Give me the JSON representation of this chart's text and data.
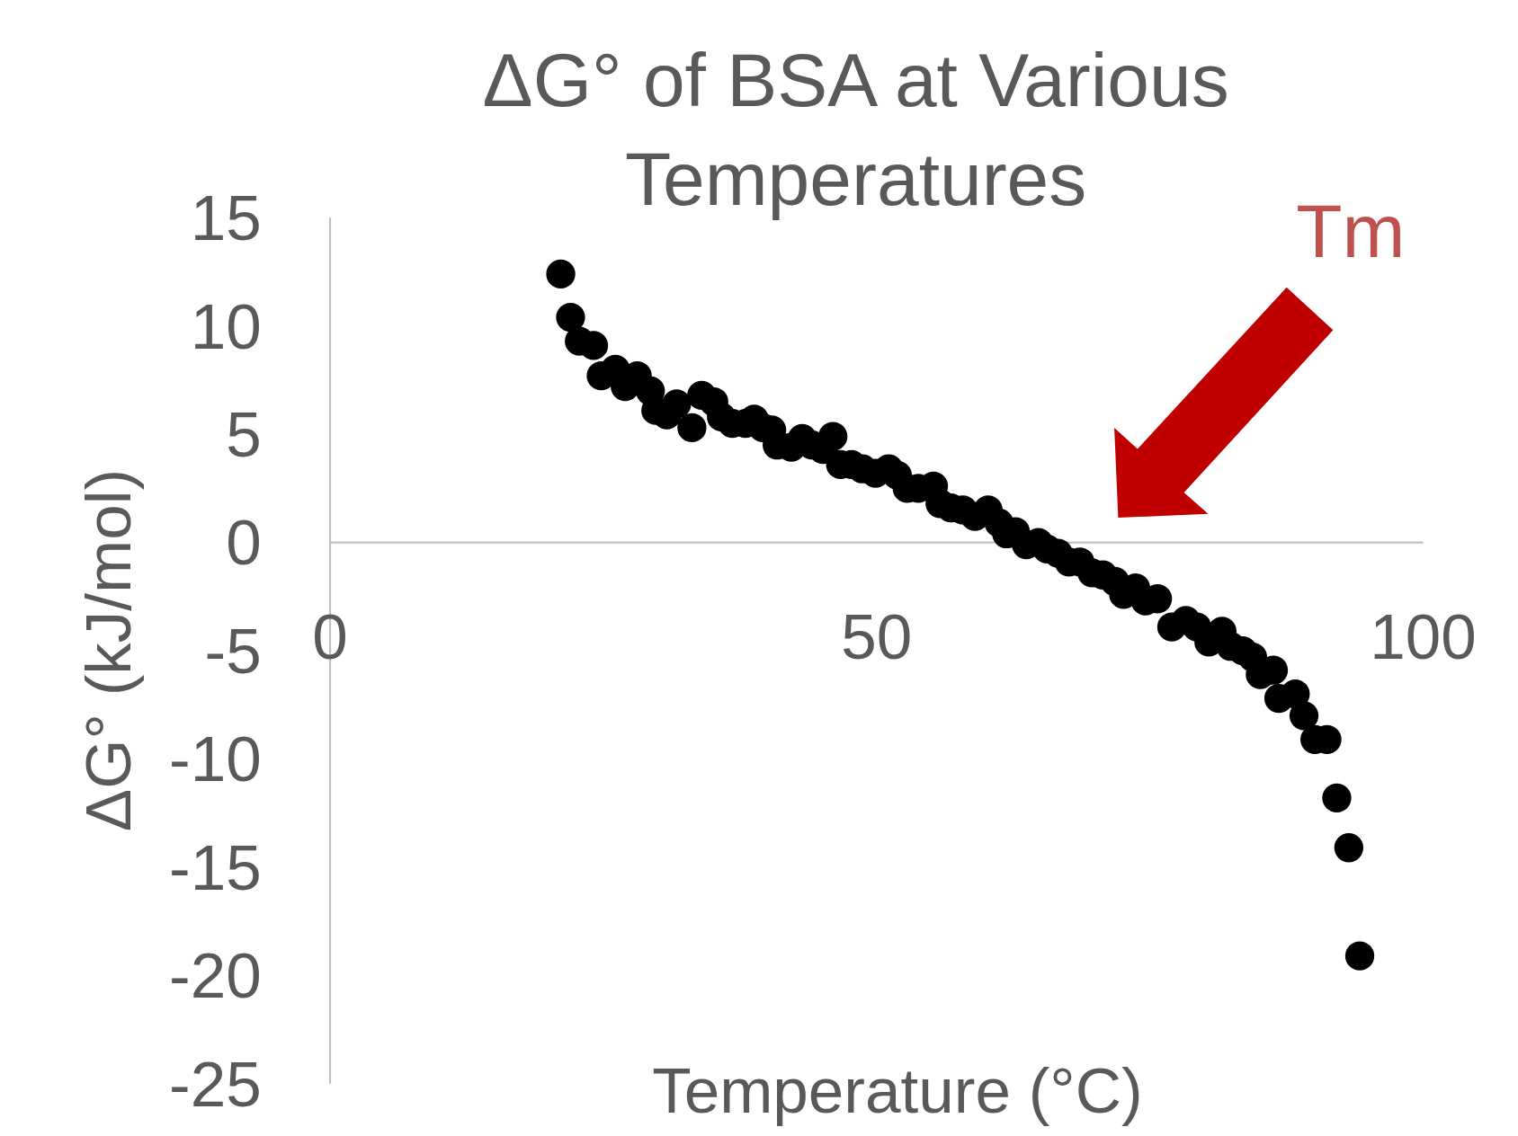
{
  "chart_data": {
    "type": "scatter",
    "title": "ΔG° of BSA at Various Temperatures",
    "xlabel": "Temperature (°C)",
    "ylabel": "ΔG° (kJ/mol)",
    "annotations": [
      "Tm"
    ],
    "xlim": [
      0,
      100
    ],
    "xticks": [
      0,
      50,
      100
    ],
    "ylim": [
      -25,
      15
    ],
    "yticks": [
      -25,
      -20,
      -15,
      -10,
      -5,
      0,
      5,
      10,
      15
    ],
    "grid": false,
    "marker": "circle",
    "series": [
      {
        "color": "#000000",
        "x": [
          21.1,
          22.0,
          22.8,
          24.1,
          24.8,
          26.1,
          27.0,
          28.1,
          29.3,
          29.8,
          30.8,
          31.7,
          33.1,
          34.0,
          35.1,
          35.8,
          36.8,
          38.0,
          38.8,
          39.6,
          40.4,
          40.9,
          42.2,
          43.2,
          44.1,
          45.1,
          46.0,
          46.7,
          47.7,
          48.7,
          49.9,
          51.1,
          51.9,
          52.8,
          53.8,
          55.2,
          55.8,
          56.8,
          57.9,
          59.0,
          60.2,
          61.2,
          61.9,
          62.7,
          63.7,
          64.8,
          65.6,
          66.6,
          67.6,
          68.6,
          69.7,
          70.7,
          71.8,
          72.6,
          73.7,
          74.6,
          75.7,
          77.0,
          78.3,
          79.3,
          80.4,
          81.6,
          82.4,
          83.5,
          84.4,
          85.1,
          86.3,
          86.8,
          88.3,
          89.1,
          90.1,
          91.2,
          92.1,
          93.2,
          94.2
        ],
        "values": [
          12.4,
          10.4,
          9.3,
          9.1,
          7.7,
          8.0,
          7.2,
          7.7,
          7.0,
          6.1,
          5.9,
          6.4,
          5.3,
          6.8,
          6.5,
          5.8,
          5.5,
          5.5,
          5.7,
          5.3,
          5.2,
          4.5,
          4.4,
          4.8,
          4.5,
          4.3,
          4.9,
          3.6,
          3.6,
          3.4,
          3.2,
          3.4,
          3.1,
          2.5,
          2.5,
          2.6,
          1.8,
          1.6,
          1.5,
          1.2,
          1.5,
          0.9,
          0.4,
          0.5,
          -0.1,
          0.0,
          -0.3,
          -0.5,
          -0.9,
          -0.9,
          -1.4,
          -1.5,
          -1.8,
          -2.4,
          -2.1,
          -2.7,
          -2.6,
          -3.9,
          -3.6,
          -3.9,
          -4.6,
          -4.1,
          -4.8,
          -5.0,
          -5.3,
          -6.1,
          -5.9,
          -7.2,
          -7.0,
          -8.0,
          -9.1,
          -9.1,
          -11.8,
          -14.1,
          -19.1
        ]
      }
    ]
  }
}
